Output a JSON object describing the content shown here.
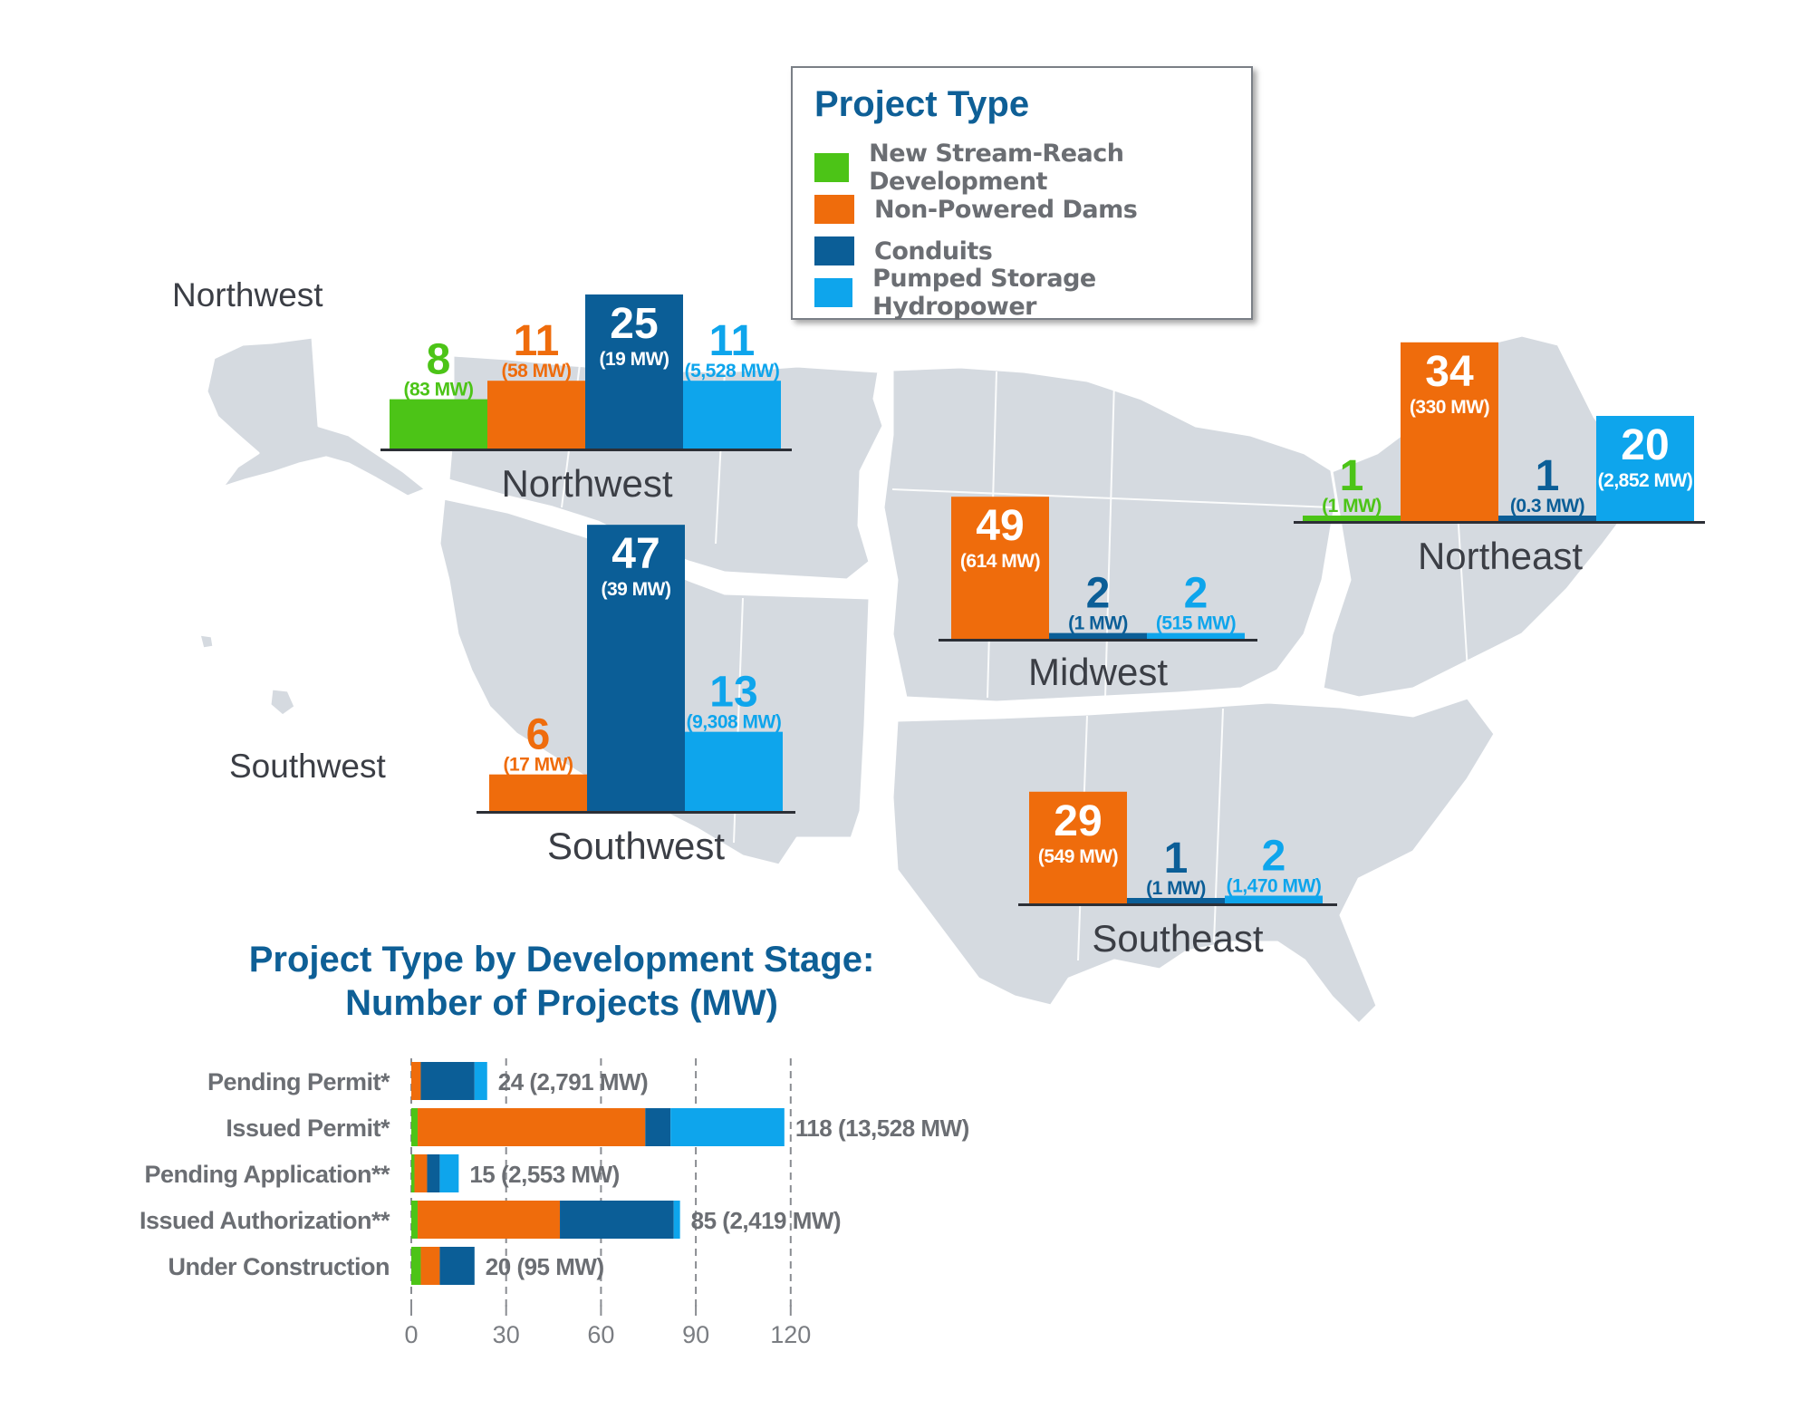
{
  "colors": {
    "new_stream": "#4cc417",
    "non_powered": "#ef6c0c",
    "conduits": "#0b5e97",
    "pumped": "#0ea5ec",
    "title": "#0e5f96",
    "map": "#d5dae0"
  },
  "legend": {
    "title": "Project Type",
    "items": [
      {
        "label": "New Stream-Reach Development",
        "color": "#4cc417"
      },
      {
        "label": "Non-Powered Dams",
        "color": "#ef6c0c"
      },
      {
        "label": "Conduits",
        "color": "#0b5e97"
      },
      {
        "label": "Pumped Storage Hydropower",
        "color": "#0ea5ec"
      }
    ]
  },
  "map_notes": {
    "northwest": "Northwest",
    "southwest": "Southwest"
  },
  "stage_chart_title": {
    "line1": "Project Type by Development Stage:",
    "line2": "Number of Projects (MW)"
  },
  "chart_data": [
    {
      "type": "bar",
      "region": "Northwest",
      "categories": [
        "New Stream-Reach Development",
        "Non-Powered Dams",
        "Conduits",
        "Pumped Storage Hydropower"
      ],
      "values": [
        8,
        11,
        25,
        11
      ],
      "labels": [
        "8",
        "11",
        "25",
        "11"
      ],
      "mw_labels": [
        "(83 MW)",
        "(58 MW)",
        "(19 MW)",
        "(5,528 MW)"
      ]
    },
    {
      "type": "bar",
      "region": "Southwest",
      "categories": [
        "Non-Powered Dams",
        "Conduits",
        "Pumped Storage Hydropower"
      ],
      "values": [
        6,
        47,
        13
      ],
      "labels": [
        "6",
        "47",
        "13"
      ],
      "mw_labels": [
        "(17 MW)",
        "(39 MW)",
        "(9,308 MW)"
      ]
    },
    {
      "type": "bar",
      "region": "Midwest",
      "categories": [
        "Non-Powered Dams",
        "Conduits",
        "Pumped Storage Hydropower"
      ],
      "values": [
        49,
        2,
        2
      ],
      "labels": [
        "49",
        "2",
        "2"
      ],
      "mw_labels": [
        "(614 MW)",
        "(1 MW)",
        "(515 MW)"
      ]
    },
    {
      "type": "bar",
      "region": "Northeast",
      "categories": [
        "New Stream-Reach Development",
        "Non-Powered Dams",
        "Conduits",
        "Pumped Storage Hydropower"
      ],
      "values": [
        1,
        34,
        1,
        20
      ],
      "labels": [
        "1",
        "34",
        "1",
        "20"
      ],
      "mw_labels": [
        "(1 MW)",
        "(330 MW)",
        "(0.3 MW)",
        "(2,852 MW)"
      ]
    },
    {
      "type": "bar",
      "region": "Southeast",
      "categories": [
        "Non-Powered Dams",
        "Conduits",
        "Pumped Storage Hydropower"
      ],
      "values": [
        29,
        1,
        2
      ],
      "labels": [
        "29",
        "1",
        "2"
      ],
      "mw_labels": [
        "(549 MW)",
        "(1 MW)",
        "(1,470 MW)"
      ]
    },
    {
      "type": "bar",
      "orientation": "horizontal",
      "stacked": true,
      "categories": [
        "Pending Permit*",
        "Issued Permit*",
        "Pending Application**",
        "Issued Authorization**",
        "Under Construction"
      ],
      "series": [
        {
          "values": [
            0,
            2,
            1,
            2,
            3
          ]
        },
        {
          "values": [
            3,
            72,
            4,
            45,
            6
          ]
        },
        {
          "values": [
            17,
            8,
            4,
            36,
            11
          ]
        },
        {
          "values": [
            4,
            36,
            6,
            2,
            0
          ]
        }
      ],
      "totals": [
        24,
        118,
        15,
        85,
        20
      ],
      "total_labels": [
        "24 (2,791 MW)",
        "118 (13,528 MW)",
        "15 (2,553 MW)",
        "85 (2,419 MW)",
        "20 (95 MW)"
      ],
      "x_ticks": [
        "0",
        "30",
        "60",
        "90",
        "120"
      ],
      "xlim": [
        0,
        120
      ],
      "grid": "dashed vertical"
    }
  ]
}
